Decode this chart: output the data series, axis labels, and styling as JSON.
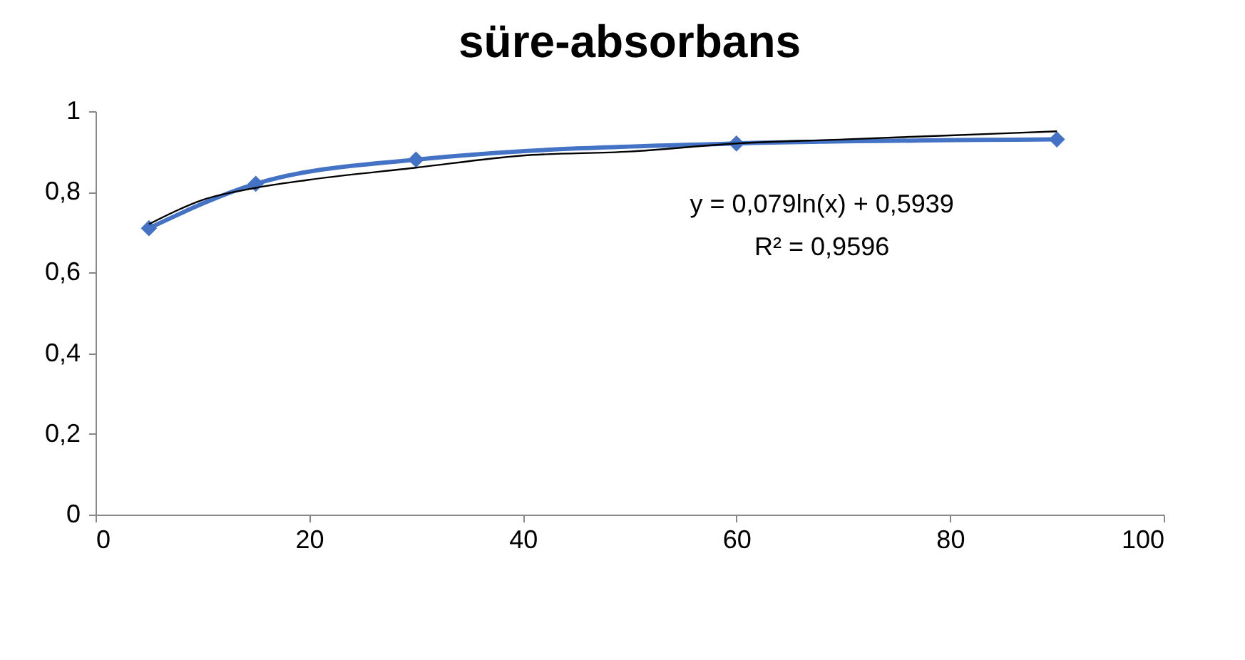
{
  "chart_data": {
    "type": "line",
    "title": "süre-absorbans",
    "x": [
      5,
      15,
      30,
      60,
      90
    ],
    "series": [
      {
        "color": "#4472c4",
        "values": [
          0.71,
          0.82,
          0.88,
          0.92,
          0.93
        ]
      },
      {
        "type": "line",
        "color": "#000000",
        "marker": "none",
        "x": [
          5,
          10,
          15,
          20,
          30,
          40,
          50,
          60,
          70,
          80,
          90
        ],
        "values": [
          0.72,
          0.78,
          0.81,
          0.83,
          0.86,
          0.89,
          0.9,
          0.92,
          0.93,
          0.94,
          0.95
        ]
      }
    ],
    "xlim": [
      0,
      100
    ],
    "xticks": [
      0,
      20,
      40,
      60,
      80,
      100
    ],
    "ylim": [
      0,
      1
    ],
    "yticks": [
      0,
      {
        "value": 0.2,
        "label": "0,2"
      },
      {
        "value": 0.4,
        "label": "0,4"
      },
      {
        "value": 0.6,
        "label": "0,6"
      },
      {
        "value": 0.8,
        "label": "0,8"
      },
      1
    ],
    "annotations": [
      "y = 0,079ln(x) + 0,5939",
      "R² = 0,9596"
    ],
    "marker": "diamond",
    "line_style": "solid",
    "grid": false
  }
}
